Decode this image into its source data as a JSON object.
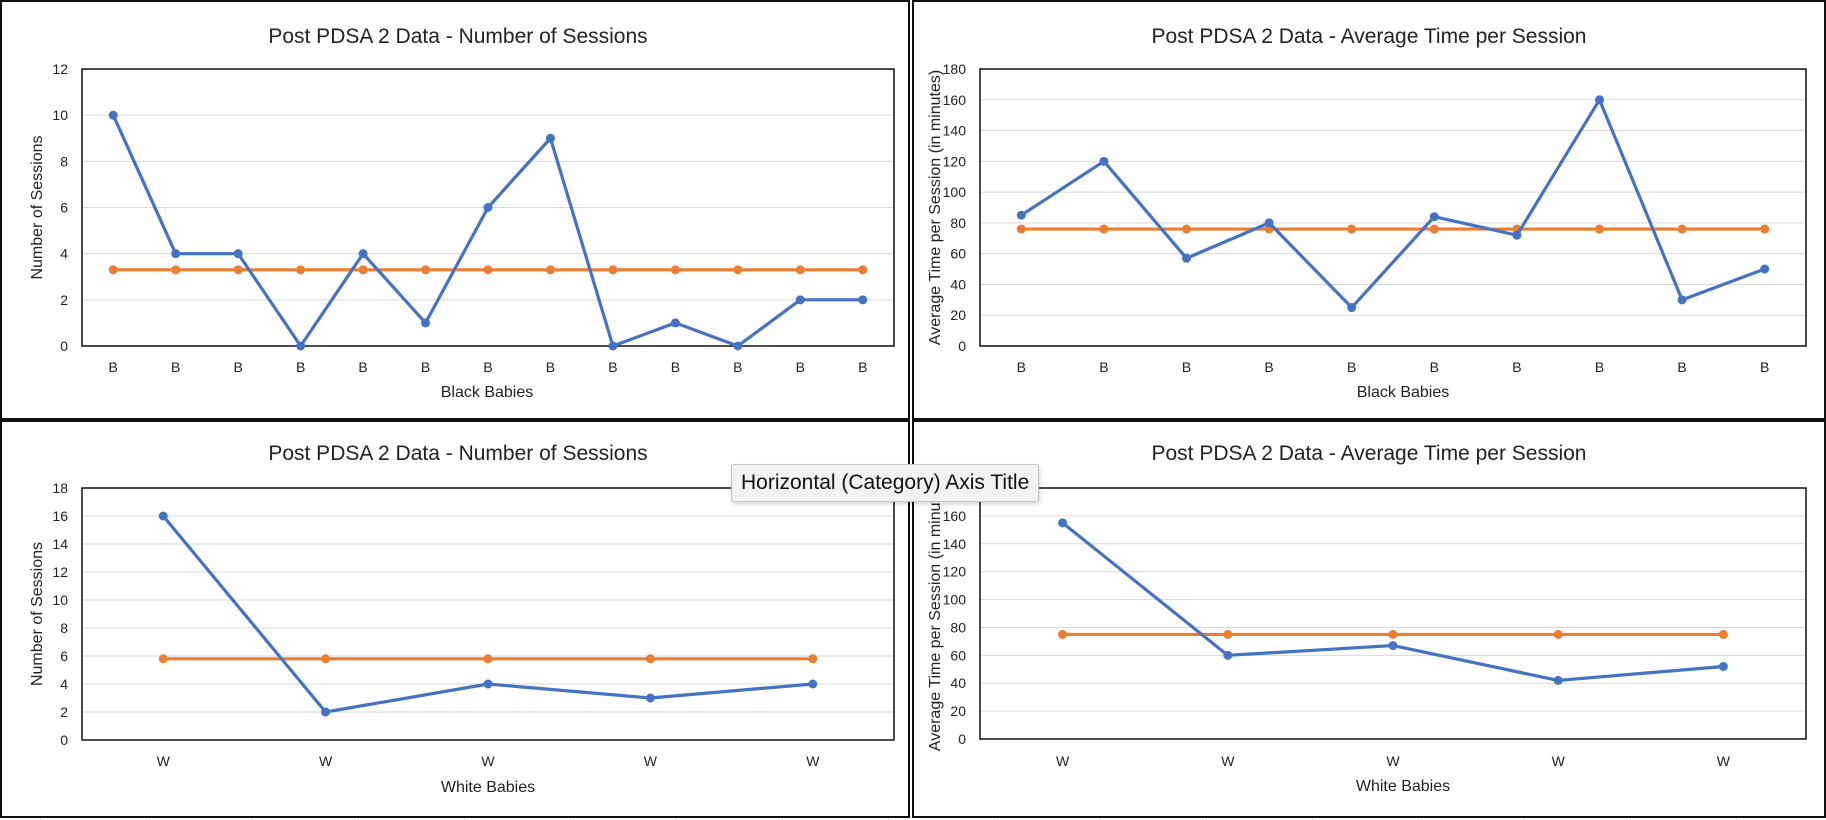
{
  "tooltip": {
    "text": "Horizontal (Category) Axis Title"
  },
  "colors": {
    "series_main": "#4472C4",
    "series_mean": "#ED7D31",
    "gridline": "#d9d9d9",
    "frame": "#111111"
  },
  "chart_data": [
    {
      "type": "line",
      "title": "Post PDSA 2 Data - Number of Sessions",
      "xlabel": "Black Babies",
      "ylabel": "Number of Sessions",
      "ylim": [
        0,
        12
      ],
      "ystep": 2,
      "categories": [
        "B",
        "B",
        "B",
        "B",
        "B",
        "B",
        "B",
        "B",
        "B",
        "B",
        "B",
        "B",
        "B"
      ],
      "series": [
        {
          "values": [
            10,
            4,
            4,
            0,
            4,
            1,
            6,
            9,
            0,
            1,
            0,
            2,
            2
          ]
        },
        {
          "values": [
            3.3,
            3.3,
            3.3,
            3.3,
            3.3,
            3.3,
            3.3,
            3.3,
            3.3,
            3.3,
            3.3,
            3.3,
            3.3
          ]
        }
      ],
      "grid": true
    },
    {
      "type": "line",
      "title": "Post PDSA 2 Data - Average Time per Session",
      "xlabel": "Black Babies",
      "ylabel": "Average Time per Session (in minutes)",
      "ylim": [
        0,
        180
      ],
      "ystep": 20,
      "categories": [
        "B",
        "B",
        "B",
        "B",
        "B",
        "B",
        "B",
        "B",
        "B",
        "B"
      ],
      "series": [
        {
          "values": [
            85,
            120,
            57,
            80,
            25,
            84,
            72,
            160,
            30,
            50
          ]
        },
        {
          "values": [
            76,
            76,
            76,
            76,
            76,
            76,
            76,
            76,
            76,
            76
          ]
        }
      ],
      "grid": true
    },
    {
      "type": "line",
      "title": "Post PDSA 2 Data - Number of Sessions",
      "xlabel": "White Babies",
      "ylabel": "Number of Sessions",
      "ylim": [
        0,
        18
      ],
      "ystep": 2,
      "categories": [
        "W",
        "W",
        "W",
        "W",
        "W"
      ],
      "series": [
        {
          "values": [
            16,
            2,
            4,
            3,
            4
          ]
        },
        {
          "values": [
            5.8,
            5.8,
            5.8,
            5.8,
            5.8
          ]
        }
      ],
      "grid": true
    },
    {
      "type": "line",
      "title": "Post PDSA 2 Data - Average Time per Session",
      "xlabel": "White Babies",
      "ylabel": "Average Time per Session (in minutes)",
      "ylim": [
        0,
        180
      ],
      "ystep": 20,
      "categories": [
        "W",
        "W",
        "W",
        "W",
        "W"
      ],
      "series": [
        {
          "values": [
            155,
            60,
            67,
            42,
            52
          ]
        },
        {
          "values": [
            75,
            75,
            75,
            75,
            75
          ]
        }
      ],
      "grid": true
    }
  ]
}
